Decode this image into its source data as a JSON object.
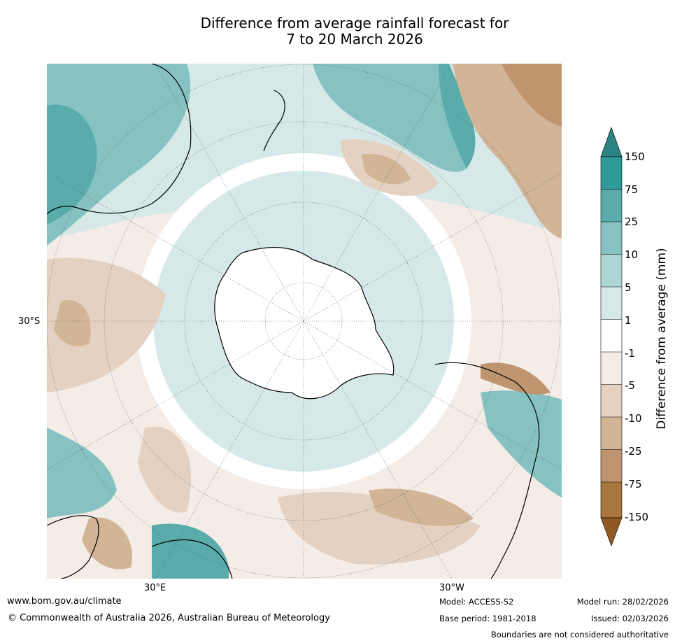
{
  "title": {
    "line1": "Difference from average rainfall forecast for",
    "line2": "7 to 20 March 2026"
  },
  "map": {
    "projection": "south-polar-stereographic",
    "lat_label": "30°S",
    "lon_labels": [
      "30°E",
      "30°W"
    ]
  },
  "colorbar": {
    "label": "Difference from average (mm)",
    "ticks": [
      "150",
      "75",
      "25",
      "10",
      "5",
      "1",
      "-1",
      "-5",
      "-10",
      "-25",
      "-75",
      "-150"
    ],
    "colors": [
      "#2b8383",
      "#2f9b99",
      "#5aacab",
      "#86c2c1",
      "#add6d5",
      "#d6e9e8",
      "#ffffff",
      "#f4ece7",
      "#e4d1c1",
      "#d2b497",
      "#be956f",
      "#a9763e",
      "#8f5a22"
    ]
  },
  "footer": {
    "url": "www.bom.gov.au/climate",
    "copyright": "© Commonwealth of Australia 2026, Australian Bureau of Meteorology",
    "model": "Model: ACCESS-S2",
    "base_period": "Base period: 1981-2018",
    "model_run": "Model run: 28/02/2026",
    "issued": "Issued: 02/03/2026",
    "disclaimer": "Boundaries are not considered authoritative"
  }
}
